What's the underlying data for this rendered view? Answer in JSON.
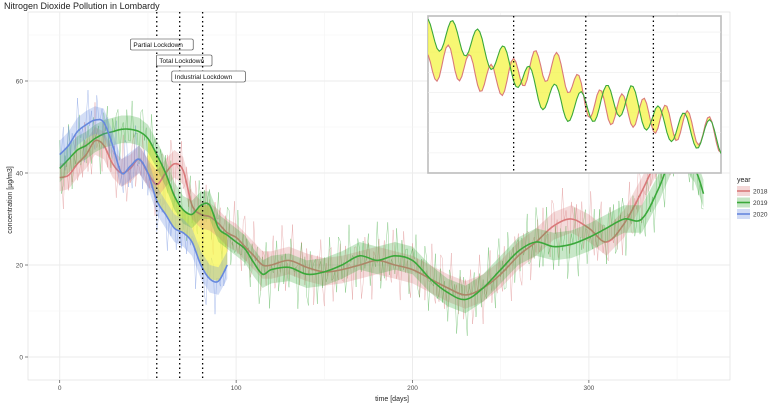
{
  "chart_data": {
    "type": "line",
    "title": "Nitrogen Dioxide Pollution in Lombardy",
    "xlabel": "time [days]",
    "ylabel": "concentration [µg/m3]",
    "xlim": [
      -18,
      380
    ],
    "ylim": [
      -5,
      75
    ],
    "x_ticks": [
      0,
      100,
      200,
      300
    ],
    "y_ticks": [
      0,
      20,
      40,
      60
    ],
    "grid": true,
    "legend": {
      "title": "year",
      "position": "right"
    },
    "colors": {
      "2018": "#d9797a",
      "2019": "#3aa83a",
      "2020": "#6688dd",
      "highlight": "#f5f550",
      "background": "#ffffff",
      "grid": "#ebebeb"
    },
    "series": [
      {
        "name": "2018",
        "x": [
          0,
          5,
          10,
          15,
          20,
          25,
          30,
          35,
          40,
          45,
          50,
          55,
          60,
          65,
          70,
          75,
          80,
          85,
          90,
          95,
          100,
          105,
          110,
          115,
          120,
          130,
          140,
          150,
          160,
          170,
          180,
          190,
          200,
          210,
          220,
          230,
          240,
          250,
          260,
          270,
          280,
          290,
          300,
          310,
          320,
          330,
          340,
          350,
          360,
          365
        ],
        "y": [
          39,
          39.5,
          42,
          44,
          47,
          46,
          42,
          40,
          41,
          43,
          40,
          37.5,
          40,
          42,
          40.5,
          33,
          31,
          30.5,
          29,
          27,
          26,
          24,
          22,
          20,
          20,
          21,
          19.5,
          18.5,
          19,
          20,
          21,
          20,
          19,
          17,
          15,
          13.5,
          15,
          18,
          22,
          25,
          28.5,
          30,
          28,
          25,
          29,
          36,
          44,
          50,
          52,
          51
        ]
      },
      {
        "name": "2019",
        "x": [
          0,
          5,
          10,
          15,
          20,
          25,
          30,
          35,
          40,
          45,
          50,
          55,
          60,
          65,
          70,
          75,
          80,
          85,
          90,
          95,
          100,
          105,
          110,
          115,
          120,
          130,
          140,
          150,
          160,
          170,
          180,
          190,
          200,
          210,
          220,
          230,
          240,
          250,
          260,
          270,
          280,
          290,
          300,
          310,
          320,
          330,
          340,
          350,
          360,
          365
        ],
        "y": [
          41,
          43,
          45,
          46,
          47.5,
          48.5,
          49,
          49.5,
          49.5,
          49,
          47.5,
          44,
          40,
          35,
          32,
          31,
          33,
          33,
          28,
          26.5,
          25,
          23.5,
          20.5,
          18,
          19,
          19.5,
          18,
          18.5,
          20,
          22,
          21,
          22,
          21,
          17,
          14,
          12.5,
          15,
          19,
          23,
          25,
          24,
          24.5,
          26,
          28,
          30,
          30,
          37,
          46,
          41,
          35.5
        ]
      },
      {
        "name": "2020",
        "x": [
          0,
          5,
          10,
          15,
          20,
          25,
          30,
          35,
          40,
          45,
          50,
          55,
          60,
          65,
          70,
          75,
          80,
          85,
          90,
          95
        ],
        "y": [
          44,
          46,
          49,
          50.5,
          51.5,
          51,
          46,
          40,
          41.5,
          43,
          40,
          34,
          31,
          28,
          27,
          25,
          20,
          17,
          16.5,
          20
        ]
      }
    ],
    "lockdowns": [
      {
        "label": "Partial Lockdown",
        "day": 55
      },
      {
        "label": "Total Lockdown",
        "day": 68
      },
      {
        "label": "Industrial Lockdown",
        "day": 81
      }
    ],
    "inset": {
      "xlim": [
        40,
        105
      ],
      "ylim": [
        15,
        54
      ]
    }
  }
}
